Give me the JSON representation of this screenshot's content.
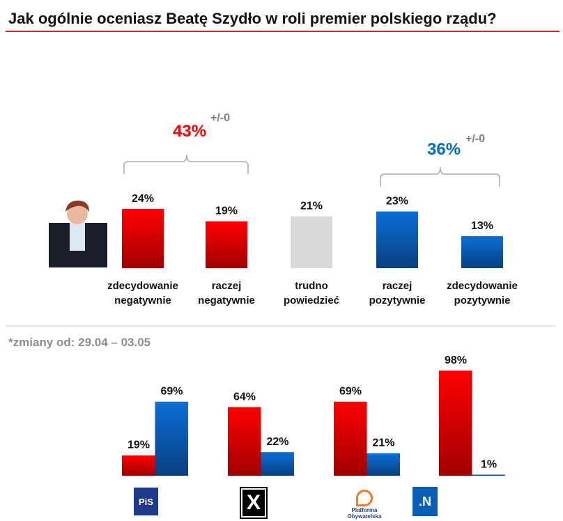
{
  "title": "Jak ogólnie oceniasz Beatę Szydło w roli premier polskiego rządu?",
  "note": "*zmiany od: 29.04 – 03.05",
  "groups": {
    "negative": {
      "total": "43%",
      "change": "+/-0",
      "color": "#ff0000"
    },
    "positive": {
      "total": "36%",
      "change": "+/-0",
      "color": "#0070c0"
    }
  },
  "chart_data": [
    {
      "type": "bar",
      "title": "Jak ogólnie oceniasz Beatę Szydło w roli premier polskiego rządu?",
      "categories": [
        [
          "zdecydowanie",
          "negatywnie"
        ],
        [
          "raczej",
          "negatywnie"
        ],
        [
          "trudno",
          "powiedzieć"
        ],
        [
          "raczej",
          "pozytywnie"
        ],
        [
          "zdecydowanie",
          "pozytywnie"
        ]
      ],
      "values": [
        24,
        19,
        21,
        23,
        13
      ],
      "labels": [
        "24%",
        "19%",
        "21%",
        "23%",
        "13%"
      ],
      "colors": [
        "#e00000",
        "#e00000",
        "#d9d9d9",
        "#0a66c8",
        "#0a66c8"
      ]
    },
    {
      "type": "bar",
      "categories": [
        "PiS",
        "Kukiz'15",
        "Platforma Obywatelska",
        ".N"
      ],
      "series": [
        {
          "name": "negatywnie",
          "color": "#e00000",
          "values": [
            19,
            64,
            69,
            98
          ],
          "labels": [
            "19%",
            "64%",
            "69%",
            "98%"
          ]
        },
        {
          "name": "pozytywnie",
          "color": "#0a66c8",
          "values": [
            69,
            22,
            21,
            1
          ],
          "labels": [
            "69%",
            "22%",
            "21%",
            "1%"
          ]
        }
      ]
    }
  ],
  "logos": {
    "pis": "PiS",
    "kukiz": "X",
    "po": "Platforma Obywatelska",
    "n": ".N"
  }
}
